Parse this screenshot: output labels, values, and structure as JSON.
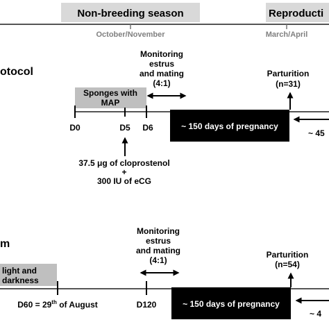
{
  "header": {
    "season_left": "Non-breeding season",
    "season_right": "Reproducti",
    "month_left": "October/November",
    "month_right": "March/April"
  },
  "protocol1": {
    "title_fragment": "otocol",
    "monitoring": [
      "Monitoring",
      "estrus",
      "and mating",
      "(4:1)"
    ],
    "parturition": [
      "Parturition",
      "(n=31)"
    ],
    "sponges": [
      "Sponges with",
      "MAP"
    ],
    "days": [
      "D0",
      "D5",
      "D6"
    ],
    "pregnancy": "~ 150 days of pregnancy",
    "after_arrow": "~ 45",
    "treatment": [
      "37.5 μg of cloprostenol",
      "+",
      "300 IU of eCG"
    ]
  },
  "protocol2": {
    "title_fragment": "m",
    "monitoring": [
      "Monitoring",
      "estrus",
      "and mating",
      "(4:1)"
    ],
    "parturition": [
      "Parturition",
      "(n=54)"
    ],
    "light": [
      "light and",
      "darkness"
    ],
    "day_start": "D60 = 29",
    "day_start_sup": "th",
    "day_start_rest": " of August",
    "day_end": "D120",
    "pregnancy": "~ 150 days of pregnancy",
    "after_arrow": "~ 4"
  },
  "colors": {
    "header_box": "#d9d9d9",
    "grey_box": "#bfbfbf",
    "black_box": "#000000",
    "grey_text": "#808080"
  }
}
